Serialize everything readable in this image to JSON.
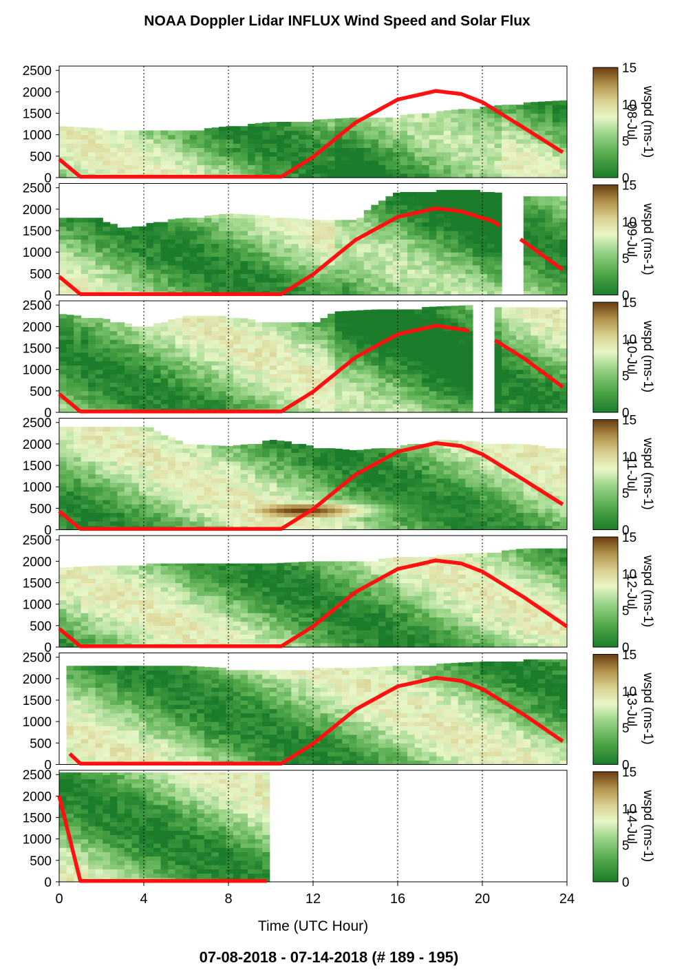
{
  "title": "NOAA Doppler Lidar INFLUX Wind Speed and Solar Flux",
  "footer": "07-08-2018 - 07-14-2018   (# 189 - 195)",
  "colors": {
    "solar_flux_line": "#ff1111",
    "colormap": [
      "#1b7d2b",
      "#52a84a",
      "#9bd48a",
      "#e8f6c8",
      "#d9cf8e",
      "#b0904a",
      "#6b3d10"
    ],
    "grid": "#000000"
  },
  "chart_data": {
    "type": "heatmap",
    "title": "NOAA Doppler Lidar INFLUX Wind Speed and Solar Flux",
    "xlabel": "Time (UTC Hour)",
    "xlim": [
      0,
      24
    ],
    "x_ticks": [
      "0",
      "4",
      "8",
      "12",
      "16",
      "20",
      "24"
    ],
    "ylim": [
      0,
      2600
    ],
    "y_ticks": [
      "0",
      "500",
      "1000",
      "1500",
      "2000",
      "2500"
    ],
    "colorbar": {
      "label": "wspd (ms-1)",
      "ticks": [
        "0",
        "5",
        "10",
        "15"
      ],
      "range": [
        0,
        15
      ]
    },
    "grid": "dotted vertical at x ticks",
    "panels": [
      {
        "day_label": "08-Jul",
        "data_end_hour": 23.8,
        "gap": null,
        "top_profile": [
          [
            0,
            1200
          ],
          [
            2,
            1150
          ],
          [
            4,
            1100
          ],
          [
            6,
            1100
          ],
          [
            8,
            1200
          ],
          [
            10,
            1300
          ],
          [
            12,
            1350
          ],
          [
            14,
            1400
          ],
          [
            16,
            1450
          ],
          [
            18,
            1550
          ],
          [
            20,
            1650
          ],
          [
            22,
            1750
          ],
          [
            23.8,
            1800
          ]
        ],
        "low_jet": null,
        "solar_flux": [
          [
            0,
            430
          ],
          [
            1,
            20
          ],
          [
            10.5,
            20
          ],
          [
            12,
            480
          ],
          [
            14,
            1280
          ],
          [
            16,
            1820
          ],
          [
            17.8,
            2020
          ],
          [
            19,
            1950
          ],
          [
            20,
            1760
          ],
          [
            22,
            1150
          ],
          [
            23.8,
            590
          ]
        ]
      },
      {
        "day_label": "09-Jul",
        "data_end_hour": 23.8,
        "gap": [
          20.8,
          21.8
        ],
        "top_profile": [
          [
            0,
            1800
          ],
          [
            2,
            1800
          ],
          [
            3,
            1550
          ],
          [
            5,
            1750
          ],
          [
            8,
            1900
          ],
          [
            10,
            1850
          ],
          [
            12,
            1750
          ],
          [
            14,
            1750
          ],
          [
            15,
            2150
          ],
          [
            16,
            2400
          ],
          [
            18,
            2450
          ],
          [
            20,
            2450
          ],
          [
            21.8,
            2300
          ],
          [
            23.8,
            2300
          ]
        ],
        "low_jet": null,
        "solar_flux": [
          [
            0,
            430
          ],
          [
            1,
            20
          ],
          [
            10.5,
            20
          ],
          [
            12,
            480
          ],
          [
            14,
            1280
          ],
          [
            16,
            1820
          ],
          [
            17.8,
            2020
          ],
          [
            19,
            1950
          ],
          [
            20.5,
            1720
          ],
          [
            21.8,
            1300
          ],
          [
            23.8,
            590
          ]
        ]
      },
      {
        "day_label": "10-Jul",
        "data_end_hour": 23.8,
        "gap": [
          19.4,
          20.6
        ],
        "top_profile": [
          [
            0,
            2300
          ],
          [
            2,
            2200
          ],
          [
            4,
            2000
          ],
          [
            6,
            2250
          ],
          [
            8,
            2250
          ],
          [
            10,
            2100
          ],
          [
            12,
            2100
          ],
          [
            13,
            2350
          ],
          [
            15,
            2400
          ],
          [
            17,
            2450
          ],
          [
            19.4,
            2500
          ],
          [
            20.6,
            2450
          ],
          [
            23.8,
            2450
          ]
        ],
        "low_jet": null,
        "solar_flux": [
          [
            0,
            430
          ],
          [
            1,
            20
          ],
          [
            10.5,
            20
          ],
          [
            12,
            480
          ],
          [
            14,
            1280
          ],
          [
            16,
            1820
          ],
          [
            17.8,
            2020
          ],
          [
            19.2,
            1920
          ],
          [
            20.6,
            1680
          ],
          [
            22,
            1250
          ],
          [
            23.8,
            590
          ]
        ]
      },
      {
        "day_label": "11-Jul",
        "data_end_hour": 23.8,
        "gap": null,
        "top_profile": [
          [
            0,
            2400
          ],
          [
            2,
            2400
          ],
          [
            4,
            2450
          ],
          [
            6,
            2000
          ],
          [
            8,
            1950
          ],
          [
            9,
            2000
          ],
          [
            10,
            2100
          ],
          [
            11,
            2050
          ],
          [
            12,
            1950
          ],
          [
            14,
            1850
          ],
          [
            16,
            1950
          ],
          [
            18,
            2100
          ],
          [
            20,
            2050
          ],
          [
            22,
            2000
          ],
          [
            23.8,
            1900
          ]
        ],
        "low_jet": {
          "hour_center": 11.5,
          "height": 450,
          "peak": 15
        },
        "solar_flux": [
          [
            0,
            430
          ],
          [
            1,
            20
          ],
          [
            10.5,
            20
          ],
          [
            12,
            480
          ],
          [
            14,
            1280
          ],
          [
            16,
            1820
          ],
          [
            17.8,
            2020
          ],
          [
            19,
            1950
          ],
          [
            20,
            1760
          ],
          [
            22,
            1150
          ],
          [
            23.8,
            590
          ]
        ]
      },
      {
        "day_label": "12-Jul",
        "data_end_hour": 24,
        "gap": null,
        "top_profile": [
          [
            0,
            1850
          ],
          [
            2,
            1900
          ],
          [
            4,
            1950
          ],
          [
            6,
            1950
          ],
          [
            8,
            1950
          ],
          [
            10,
            1950
          ],
          [
            12,
            2000
          ],
          [
            14,
            2000
          ],
          [
            16,
            2100
          ],
          [
            18,
            2150
          ],
          [
            20,
            2200
          ],
          [
            22,
            2300
          ],
          [
            24,
            2300
          ]
        ],
        "low_jet": null,
        "solar_flux": [
          [
            0,
            430
          ],
          [
            1,
            20
          ],
          [
            10.5,
            20
          ],
          [
            12,
            480
          ],
          [
            14,
            1280
          ],
          [
            16,
            1820
          ],
          [
            17.8,
            2020
          ],
          [
            19,
            1950
          ],
          [
            20,
            1760
          ],
          [
            22,
            1150
          ],
          [
            24,
            480
          ]
        ]
      },
      {
        "day_label": "13-Jul",
        "data_end_hour": 23.8,
        "gap": null,
        "top_profile": [
          [
            0.5,
            2300
          ],
          [
            2,
            2300
          ],
          [
            4,
            2350
          ],
          [
            6,
            2300
          ],
          [
            8,
            2250
          ],
          [
            10,
            2200
          ],
          [
            12,
            2250
          ],
          [
            14,
            2250
          ],
          [
            16,
            2300
          ],
          [
            18,
            2350
          ],
          [
            20,
            2400
          ],
          [
            22,
            2450
          ],
          [
            23.8,
            2450
          ]
        ],
        "low_jet": null,
        "solar_flux": [
          [
            0.5,
            250
          ],
          [
            1,
            20
          ],
          [
            10.5,
            20
          ],
          [
            12,
            480
          ],
          [
            14,
            1280
          ],
          [
            16,
            1820
          ],
          [
            17.8,
            2020
          ],
          [
            19,
            1950
          ],
          [
            20,
            1760
          ],
          [
            22,
            1150
          ],
          [
            23.8,
            540
          ]
        ]
      },
      {
        "day_label": "14-Jul",
        "data_end_hour": 9.8,
        "gap": null,
        "top_profile": [
          [
            0,
            2550
          ],
          [
            2,
            2550
          ],
          [
            4,
            2550
          ],
          [
            6,
            2550
          ],
          [
            8,
            2550
          ],
          [
            9.8,
            2550
          ]
        ],
        "low_jet": null,
        "solar_flux": [
          [
            0,
            2000
          ],
          [
            1,
            20
          ],
          [
            9.8,
            20
          ]
        ]
      }
    ]
  }
}
